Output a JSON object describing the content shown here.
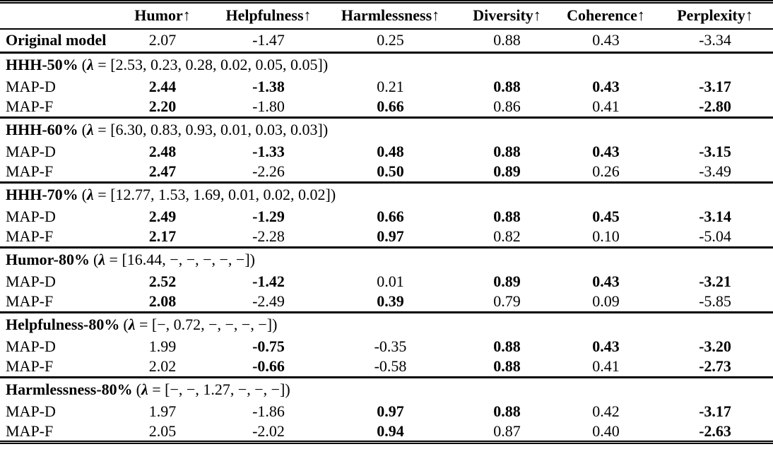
{
  "table": {
    "corner_label": "",
    "columns": [
      {
        "label": "Humor",
        "arrow": "↑"
      },
      {
        "label": "Helpfulness",
        "arrow": "↑"
      },
      {
        "label": "Harmlessness",
        "arrow": "↑"
      },
      {
        "label": "Diversity",
        "arrow": "↑"
      },
      {
        "label": "Coherence",
        "arrow": "↑"
      },
      {
        "label": "Perplexity",
        "arrow": "↑"
      }
    ],
    "original": {
      "label": "Original model",
      "values": [
        "2.07",
        "-1.47",
        "0.25",
        "0.88",
        "0.43",
        "-3.34"
      ]
    },
    "lambda_format": {
      "open": "(",
      "symbol": "λ",
      "equals": " = ",
      "close": ")"
    },
    "sections": [
      {
        "title": "HHH-50%",
        "lambda_values": "[2.53, 0.23, 0.28, 0.02, 0.05, 0.05]",
        "rows": [
          {
            "label": "MAP-D",
            "values": [
              {
                "t": "2.44",
                "b": true
              },
              {
                "t": "-1.38",
                "b": true
              },
              {
                "t": "0.21",
                "b": false
              },
              {
                "t": "0.88",
                "b": true
              },
              {
                "t": "0.43",
                "b": true
              },
              {
                "t": "-3.17",
                "b": true
              }
            ]
          },
          {
            "label": "MAP-F",
            "values": [
              {
                "t": "2.20",
                "b": true
              },
              {
                "t": "-1.80",
                "b": false
              },
              {
                "t": "0.66",
                "b": true
              },
              {
                "t": "0.86",
                "b": false
              },
              {
                "t": "0.41",
                "b": false
              },
              {
                "t": "-2.80",
                "b": true
              }
            ]
          }
        ]
      },
      {
        "title": "HHH-60%",
        "lambda_values": "[6.30, 0.83, 0.93, 0.01, 0.03, 0.03]",
        "rows": [
          {
            "label": "MAP-D",
            "values": [
              {
                "t": "2.48",
                "b": true
              },
              {
                "t": "-1.33",
                "b": true
              },
              {
                "t": "0.48",
                "b": true
              },
              {
                "t": "0.88",
                "b": true
              },
              {
                "t": "0.43",
                "b": true
              },
              {
                "t": "-3.15",
                "b": true
              }
            ]
          },
          {
            "label": "MAP-F",
            "values": [
              {
                "t": "2.47",
                "b": true
              },
              {
                "t": "-2.26",
                "b": false
              },
              {
                "t": "0.50",
                "b": true
              },
              {
                "t": "0.89",
                "b": true
              },
              {
                "t": "0.26",
                "b": false
              },
              {
                "t": "-3.49",
                "b": false
              }
            ]
          }
        ]
      },
      {
        "title": "HHH-70%",
        "lambda_values": "[12.77, 1.53, 1.69, 0.01, 0.02, 0.02]",
        "rows": [
          {
            "label": "MAP-D",
            "values": [
              {
                "t": "2.49",
                "b": true
              },
              {
                "t": "-1.29",
                "b": true
              },
              {
                "t": "0.66",
                "b": true
              },
              {
                "t": "0.88",
                "b": true
              },
              {
                "t": "0.45",
                "b": true
              },
              {
                "t": "-3.14",
                "b": true
              }
            ]
          },
          {
            "label": "MAP-F",
            "values": [
              {
                "t": "2.17",
                "b": true
              },
              {
                "t": "-2.28",
                "b": false
              },
              {
                "t": "0.97",
                "b": true
              },
              {
                "t": "0.82",
                "b": false
              },
              {
                "t": "0.10",
                "b": false
              },
              {
                "t": "-5.04",
                "b": false
              }
            ]
          }
        ]
      },
      {
        "title": "Humor-80%",
        "lambda_values": "[16.44, −, −, −, −, −]",
        "rows": [
          {
            "label": "MAP-D",
            "values": [
              {
                "t": "2.52",
                "b": true
              },
              {
                "t": "-1.42",
                "b": true
              },
              {
                "t": "0.01",
                "b": false
              },
              {
                "t": "0.89",
                "b": true
              },
              {
                "t": "0.43",
                "b": true
              },
              {
                "t": "-3.21",
                "b": true
              }
            ]
          },
          {
            "label": "MAP-F",
            "values": [
              {
                "t": "2.08",
                "b": true
              },
              {
                "t": "-2.49",
                "b": false
              },
              {
                "t": "0.39",
                "b": true
              },
              {
                "t": "0.79",
                "b": false
              },
              {
                "t": "0.09",
                "b": false
              },
              {
                "t": "-5.85",
                "b": false
              }
            ]
          }
        ]
      },
      {
        "title": "Helpfulness-80%",
        "lambda_values": "[−, 0.72, −, −, −, −]",
        "rows": [
          {
            "label": "MAP-D",
            "values": [
              {
                "t": "1.99",
                "b": false
              },
              {
                "t": "-0.75",
                "b": true
              },
              {
                "t": "-0.35",
                "b": false
              },
              {
                "t": "0.88",
                "b": true
              },
              {
                "t": "0.43",
                "b": true
              },
              {
                "t": "-3.20",
                "b": true
              }
            ]
          },
          {
            "label": "MAP-F",
            "values": [
              {
                "t": "2.02",
                "b": false
              },
              {
                "t": "-0.66",
                "b": true
              },
              {
                "t": "-0.58",
                "b": false
              },
              {
                "t": "0.88",
                "b": true
              },
              {
                "t": "0.41",
                "b": false
              },
              {
                "t": "-2.73",
                "b": true
              }
            ]
          }
        ]
      },
      {
        "title": "Harmlessness-80%",
        "lambda_values": "[−, −, 1.27, −, −, −]",
        "rows": [
          {
            "label": "MAP-D",
            "values": [
              {
                "t": "1.97",
                "b": false
              },
              {
                "t": "-1.86",
                "b": false
              },
              {
                "t": "0.97",
                "b": true
              },
              {
                "t": "0.88",
                "b": true
              },
              {
                "t": "0.42",
                "b": false
              },
              {
                "t": "-3.17",
                "b": true
              }
            ]
          },
          {
            "label": "MAP-F",
            "values": [
              {
                "t": "2.05",
                "b": false
              },
              {
                "t": "-2.02",
                "b": false
              },
              {
                "t": "0.94",
                "b": true
              },
              {
                "t": "0.87",
                "b": false
              },
              {
                "t": "0.40",
                "b": false
              },
              {
                "t": "-2.63",
                "b": true
              }
            ]
          }
        ]
      }
    ]
  }
}
